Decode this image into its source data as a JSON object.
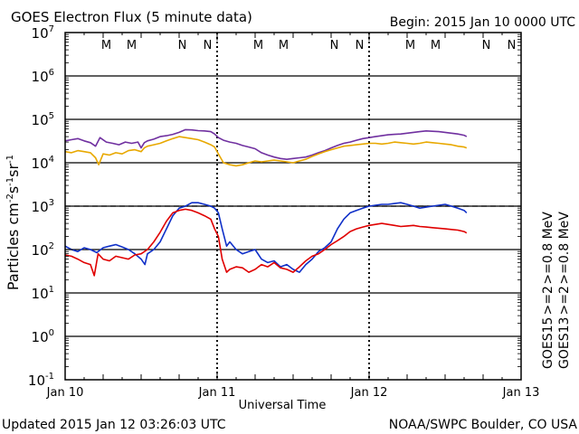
{
  "header": {
    "title": "GOES Electron Flux (5 minute data)",
    "begin": "Begin: 2015 Jan 10 0000 UTC"
  },
  "footer": {
    "updated": "Updated 2015 Jan 12 03:26:03 UTC",
    "credit": "NOAA/SWPC Boulder, CO USA"
  },
  "chart_data": {
    "type": "line",
    "title": "GOES Electron Flux (5 minute data)",
    "xlabel": "Universal Time",
    "ylabel": "Particles cm^-2 s^-1 sr^-1",
    "yscale": "log",
    "ylim_exp": [
      -1,
      7
    ],
    "y_tick_exponents": [
      7,
      6,
      5,
      4,
      3,
      2,
      1,
      0,
      -1
    ],
    "x_unit": "hours since 2015-01-10 00:00 UTC",
    "xlim": [
      0,
      72
    ],
    "x_ticks": [
      {
        "t": 0,
        "label": "Jan 10"
      },
      {
        "t": 24,
        "label": "Jan 11"
      },
      {
        "t": 48,
        "label": "Jan 12"
      },
      {
        "t": 72,
        "label": "Jan 13"
      }
    ],
    "alert_threshold": 1000,
    "markers": {
      "GOES13": [
        {
          "letter": "M",
          "t": 6.5
        },
        {
          "letter": "N",
          "t": 18.5
        },
        {
          "letter": "M",
          "t": 30.5
        },
        {
          "letter": "N",
          "t": 42.5
        },
        {
          "letter": "M",
          "t": 54.5
        },
        {
          "letter": "N",
          "t": 66.5
        }
      ],
      "GOES15": [
        {
          "letter": "M",
          "t": 10.5
        },
        {
          "letter": "N",
          "t": 22.5
        },
        {
          "letter": "M",
          "t": 34.5
        },
        {
          "letter": "N",
          "t": 46.5
        },
        {
          "letter": "M",
          "t": 58.5
        },
        {
          "letter": "N",
          "t": 70.5
        }
      ]
    },
    "legend": [
      {
        "text": "GOES13",
        "color": "#000000"
      },
      {
        "text": ">=2",
        "color": "#e00000"
      },
      {
        "text": ">=0.8 MeV",
        "color": "#e8a800"
      },
      {
        "text": "GOES15",
        "color": "#000000"
      },
      {
        "text": ">=2",
        "color": "#1030c8"
      },
      {
        "text": ">=0.8 MeV",
        "color": "#7030a0"
      }
    ],
    "series": [
      {
        "name": "GOES15 >=0.8 MeV",
        "color": "#7030a0",
        "t": [
          0,
          1,
          2,
          3,
          4,
          4.8,
          5.5,
          6.5,
          7.5,
          8.5,
          9.5,
          10.5,
          11.5,
          12,
          12.5,
          13,
          14,
          15,
          16,
          17,
          18,
          19,
          20,
          21,
          22,
          23,
          23.6,
          24.2,
          25,
          26,
          27,
          28,
          29,
          30,
          31,
          32,
          33,
          34,
          35,
          36,
          37,
          38,
          39,
          40,
          41,
          42,
          43,
          44,
          45,
          46,
          47,
          48,
          49,
          50,
          51,
          52,
          53,
          54,
          55,
          56,
          57,
          58,
          59,
          60,
          61,
          62,
          63,
          63.4
        ],
        "v": [
          32000,
          34000,
          36000,
          32000,
          29000,
          24000,
          38000,
          30000,
          28000,
          26000,
          30000,
          28000,
          30000,
          22000,
          29000,
          32000,
          35000,
          40000,
          42000,
          45000,
          50000,
          58000,
          57000,
          55000,
          54000,
          52000,
          46000,
          38000,
          33000,
          30000,
          28000,
          25000,
          23000,
          21000,
          17000,
          15000,
          13500,
          12500,
          12000,
          12500,
          13000,
          13500,
          15000,
          17000,
          19000,
          22000,
          25000,
          28000,
          30000,
          33000,
          36000,
          38000,
          40000,
          42000,
          44000,
          45000,
          46000,
          48000,
          50000,
          52000,
          54000,
          53000,
          52000,
          50000,
          48000,
          46000,
          43000,
          40000
        ]
      },
      {
        "name": "GOES13 >=0.8 MeV",
        "color": "#e8a800",
        "t": [
          0,
          1,
          2,
          3,
          4,
          4.8,
          5.3,
          6,
          7,
          8,
          9,
          10,
          11,
          12,
          12.5,
          13,
          14,
          15,
          16,
          17,
          18,
          19,
          20,
          21,
          22,
          23,
          23.6,
          24.2,
          25,
          26,
          27,
          28,
          29,
          30,
          31,
          32,
          33,
          34,
          35,
          36,
          37,
          38,
          39,
          40,
          41,
          42,
          43,
          44,
          45,
          46,
          47,
          48,
          49,
          50,
          51,
          52,
          53,
          54,
          55,
          56,
          57,
          58,
          59,
          60,
          61,
          62,
          63,
          63.4
        ],
        "v": [
          18000,
          17000,
          19000,
          18000,
          17000,
          13000,
          9000,
          16000,
          15000,
          17000,
          16000,
          19000,
          20000,
          18000,
          22000,
          24000,
          26000,
          28000,
          32000,
          36000,
          40000,
          38000,
          36000,
          34000,
          30000,
          26000,
          23000,
          16000,
          10000,
          9000,
          8500,
          9000,
          10000,
          11000,
          10500,
          11000,
          11500,
          11000,
          10500,
          10000,
          11000,
          12000,
          14000,
          16000,
          18000,
          20000,
          22000,
          24000,
          25000,
          26000,
          27000,
          28000,
          28000,
          27000,
          28000,
          30000,
          29000,
          28000,
          27000,
          28000,
          30000,
          29000,
          28000,
          27000,
          26000,
          24000,
          23000,
          22000
        ]
      },
      {
        "name": "GOES15 >=2 MeV",
        "color": "#1030c8",
        "t": [
          0,
          1,
          2,
          3,
          4,
          5,
          6,
          7,
          8,
          9,
          10,
          11,
          12,
          12.6,
          13,
          14,
          15,
          16,
          17,
          18,
          19,
          20,
          21,
          22,
          23,
          23.6,
          24.2,
          24.8,
          25.5,
          26,
          27,
          28,
          29,
          30,
          31,
          32,
          33,
          34,
          35,
          36,
          37,
          38,
          39,
          40,
          41,
          42,
          43,
          44,
          45,
          46,
          47,
          48,
          49,
          50,
          51,
          52,
          53,
          54,
          55,
          56,
          57,
          58,
          59,
          60,
          61,
          62,
          63,
          63.4
        ],
        "v": [
          120,
          100,
          90,
          110,
          100,
          85,
          110,
          120,
          130,
          115,
          100,
          80,
          60,
          45,
          80,
          100,
          150,
          300,
          600,
          900,
          1000,
          1200,
          1200,
          1100,
          1000,
          900,
          700,
          300,
          120,
          150,
          100,
          80,
          90,
          100,
          60,
          50,
          55,
          40,
          45,
          35,
          30,
          45,
          60,
          90,
          110,
          150,
          300,
          500,
          700,
          800,
          900,
          1000,
          1050,
          1100,
          1100,
          1150,
          1200,
          1100,
          1000,
          900,
          950,
          1000,
          1050,
          1100,
          1000,
          900,
          800,
          700
        ]
      },
      {
        "name": "GOES13 >=2 MeV",
        "color": "#e00000",
        "t": [
          0,
          1,
          2,
          3,
          4,
          4.6,
          5.2,
          6,
          7,
          8,
          9,
          10,
          11,
          12,
          13,
          14,
          15,
          16,
          17,
          18,
          19,
          20,
          21,
          22,
          23,
          23.6,
          24.2,
          24.8,
          25.5,
          26,
          27,
          28,
          29,
          30,
          31,
          32,
          33,
          34,
          35,
          36,
          37,
          38,
          39,
          40,
          41,
          42,
          43,
          44,
          45,
          46,
          47,
          48,
          49,
          50,
          51,
          52,
          53,
          54,
          55,
          56,
          57,
          58,
          59,
          60,
          61,
          62,
          63,
          63.4
        ],
        "v": [
          75,
          70,
          60,
          50,
          45,
          25,
          80,
          60,
          55,
          70,
          65,
          60,
          75,
          80,
          100,
          150,
          250,
          450,
          700,
          800,
          850,
          800,
          700,
          600,
          500,
          300,
          200,
          60,
          30,
          35,
          40,
          38,
          30,
          35,
          45,
          40,
          50,
          38,
          35,
          30,
          40,
          55,
          70,
          80,
          100,
          130,
          160,
          200,
          260,
          300,
          330,
          360,
          380,
          400,
          380,
          360,
          340,
          350,
          360,
          340,
          330,
          320,
          310,
          300,
          290,
          280,
          260,
          240
        ]
      }
    ]
  }
}
